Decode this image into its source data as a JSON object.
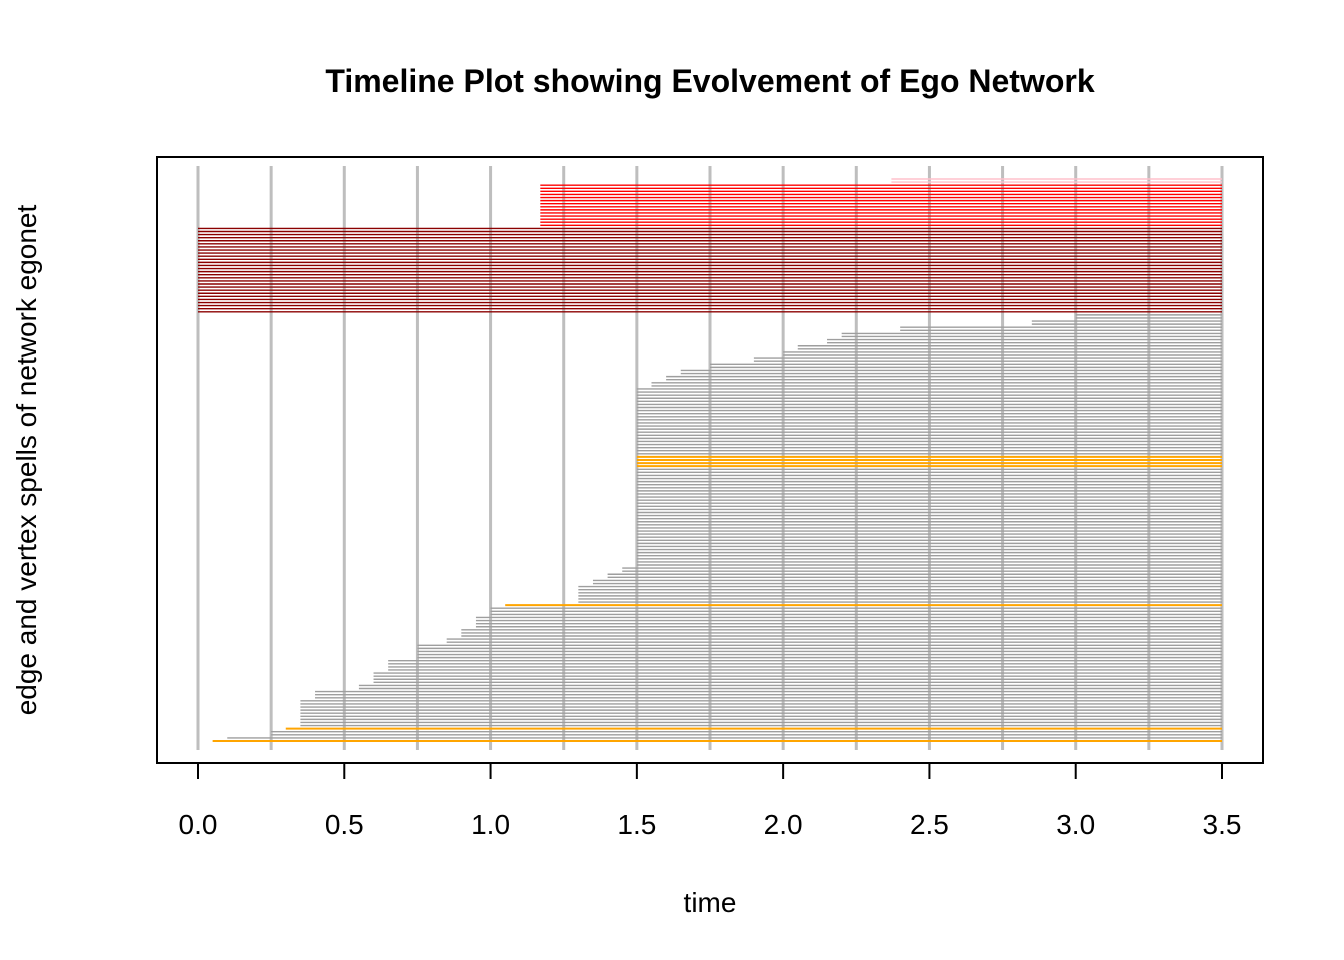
{
  "chart_data": {
    "type": "timeline",
    "title": "Timeline Plot showing Evolvement of Ego Network",
    "xlabel": "time",
    "ylabel": "edge and vertex spells of network  egonet",
    "xlim": [
      0,
      3.5
    ],
    "x_ticks": [
      "0.0",
      "0.5",
      "1.0",
      "1.5",
      "2.0",
      "2.5",
      "3.0",
      "3.5"
    ],
    "grid_lines_at": [
      0,
      0.25,
      0.5,
      0.75,
      1.0,
      1.25,
      1.5,
      1.75,
      2.0,
      2.25,
      2.5,
      2.75,
      3.0,
      3.25,
      3.5
    ],
    "colors": {
      "gridline": "#bebebe",
      "gray_spell": "#9e9e9e",
      "orange_spell": "#ffa500",
      "darkred_spell": "#8b0000",
      "red_spell": "#ff0000",
      "pink_spell": "#ffc0cb"
    },
    "spell_groups": [
      {
        "category": "pink",
        "starts": [
          2.37,
          2.37
        ]
      },
      {
        "category": "red",
        "starts": [
          1.17,
          1.17,
          1.17,
          1.17,
          1.17,
          1.17,
          1.17,
          1.17,
          1.17,
          1.17,
          1.17,
          1.17,
          1.17,
          1.17
        ]
      },
      {
        "category": "darkred",
        "starts": [
          0,
          0,
          0,
          0,
          0,
          0,
          0,
          0,
          0,
          0,
          0,
          0,
          0,
          0,
          0,
          0,
          0,
          0,
          0,
          0,
          0,
          0,
          0,
          0,
          0,
          0,
          0,
          0
        ]
      },
      {
        "category": "gray",
        "starts": [
          3.0,
          3.0,
          2.85,
          2.85,
          2.4,
          2.4,
          2.2,
          2.2,
          2.15,
          2.15,
          2.05,
          2.05,
          2.0,
          2.0,
          1.9,
          1.9,
          1.75,
          1.75,
          1.65,
          1.65,
          1.6,
          1.6,
          1.55,
          1.55,
          1.5,
          1.5,
          1.5,
          1.5,
          1.5,
          1.5,
          1.5,
          1.5,
          1.5,
          1.5,
          1.5,
          1.5,
          1.5,
          1.5,
          1.5,
          1.5,
          1.5,
          1.5,
          1.5,
          1.5,
          1.5,
          1.5
        ]
      },
      {
        "category": "orange",
        "starts": [
          1.5,
          1.5,
          1.5,
          1.5
        ]
      },
      {
        "category": "gray",
        "starts": [
          1.5,
          1.5,
          1.5,
          1.5,
          1.5,
          1.5,
          1.5,
          1.5,
          1.5,
          1.5,
          1.5,
          1.5,
          1.5,
          1.5,
          1.5,
          1.5,
          1.5,
          1.5,
          1.5,
          1.5,
          1.5,
          1.5,
          1.5,
          1.5,
          1.5,
          1.5,
          1.5,
          1.5,
          1.5,
          1.5,
          1.5,
          1.5,
          1.45,
          1.45,
          1.4,
          1.4,
          1.35,
          1.35,
          1.3,
          1.3,
          1.3,
          1.3,
          1.3,
          1.3
        ]
      },
      {
        "category": "orange",
        "starts": [
          1.05
        ]
      },
      {
        "category": "gray",
        "starts": [
          1.0,
          1.0,
          1.0,
          0.95,
          0.95,
          0.95,
          0.95,
          0.9,
          0.9,
          0.9,
          0.85,
          0.85,
          0.75,
          0.75,
          0.75,
          0.75,
          0.75,
          0.65,
          0.65,
          0.65,
          0.65,
          0.6,
          0.6,
          0.6,
          0.6,
          0.55,
          0.55,
          0.4,
          0.4,
          0.4,
          0.35,
          0.35,
          0.35,
          0.35,
          0.35,
          0.35,
          0.35,
          0.35,
          0.35
        ]
      },
      {
        "category": "orange",
        "starts": [
          0.3
        ]
      },
      {
        "category": "gray",
        "starts": [
          0.25,
          0.25,
          0.1
        ]
      },
      {
        "category": "orange",
        "starts": [
          0.05
        ]
      }
    ],
    "spell_end": 3.5
  }
}
